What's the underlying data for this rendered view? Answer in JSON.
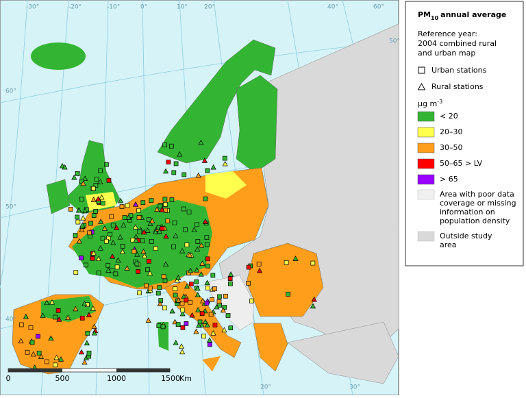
{
  "map": {
    "graticule_labels": {
      "top": [
        "-30°",
        "-20°",
        "-10°",
        "0°",
        "10°",
        "20°",
        "40°",
        "60°"
      ],
      "right": [
        "50°"
      ],
      "left": [
        "60°",
        "50°",
        "40°"
      ],
      "bottom": [
        "20°",
        "30°"
      ]
    },
    "scale_bar": {
      "ticks": [
        "0",
        "500",
        "1000",
        "1500"
      ],
      "unit": "Km"
    }
  },
  "legend": {
    "title": {
      "text": "PM",
      "subscript": "10",
      "suffix": "annual average"
    },
    "reference": [
      "Reference year:",
      "2004 combined rural",
      "and urban map"
    ],
    "stations": [
      "Urban stations",
      "Rural stations"
    ],
    "unit": {
      "text": "µg m",
      "superscript": "-3"
    },
    "classes": [
      {
        "label": "< 20",
        "color": "#33b533"
      },
      {
        "label": "20–30",
        "color": "#ffff4d"
      },
      {
        "label": "30–50",
        "color": "#ff9e1a"
      },
      {
        "label": "50–65 > LV",
        "color": "#ff0000"
      },
      {
        "label": "> 65",
        "color": "#9900ff"
      }
    ],
    "other": [
      {
        "lines": [
          "Area with poor data",
          "coverage or missing",
          "information on",
          "population density"
        ],
        "color": "#f0f0f0"
      },
      {
        "lines": [
          "Outside study",
          "area"
        ],
        "color": "#d9d9d9"
      }
    ]
  }
}
